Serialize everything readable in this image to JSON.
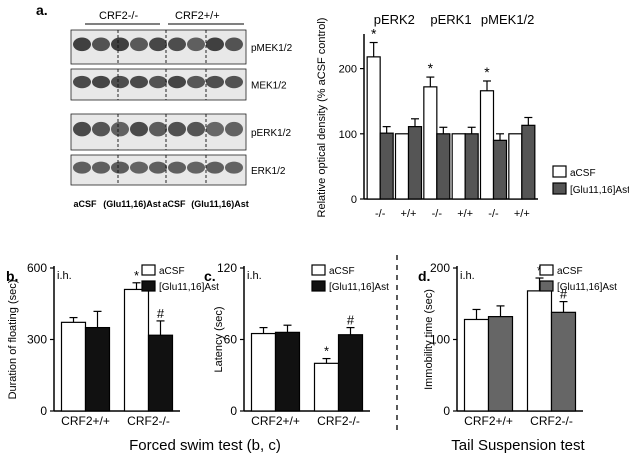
{
  "panel_labels": {
    "a": "a.",
    "b": "b.",
    "c": "c.",
    "d": "d."
  },
  "footers": {
    "swim": "Forced swim test (b, c)",
    "tail": "Tail Suspension test"
  },
  "western": {
    "group_left": "CRF2-/-",
    "group_right": "CRF2+/+",
    "blots": [
      "pMEK1/2",
      "MEK1/2",
      "pERK1/2",
      "ERK1/2"
    ],
    "lane_labels": [
      "aCSF",
      "(Glu11,16)Ast",
      "aCSF",
      "(Glu11,16)Ast"
    ]
  },
  "chart_data": [
    {
      "id": "a",
      "type": "bar",
      "title": "",
      "ylabel": "Relative optical density (% aCSF control)",
      "ylim": [
        0,
        250
      ],
      "yticks": [
        0,
        100,
        200
      ],
      "groups": [
        "pERK2",
        "pERK1",
        "pMEK1/2"
      ],
      "categories": [
        "-/-",
        "+/+",
        "-/-",
        "+/+",
        "-/-",
        "+/+"
      ],
      "series": [
        {
          "name": "aCSF",
          "color": "#ffffff",
          "values": [
            218,
            100,
            172,
            100,
            166,
            100
          ],
          "errors": [
            22,
            0,
            15,
            0,
            15,
            0
          ]
        },
        {
          "name": "[Glu11,16]Ast",
          "color": "#555555",
          "values": [
            101,
            111,
            100,
            100,
            90,
            113
          ],
          "errors": [
            10,
            12,
            10,
            10,
            10,
            12
          ]
        }
      ],
      "annotations": [
        "*",
        "*",
        "*"
      ],
      "legend": "bottom-right"
    },
    {
      "id": "b",
      "type": "bar",
      "ylabel": "Duration of floating (sec)",
      "ylim": [
        0,
        600
      ],
      "yticks": [
        0,
        300,
        600
      ],
      "categories": [
        "CRF2+/+",
        "CRF2-/-"
      ],
      "series": [
        {
          "name": "aCSF",
          "color": "#ffffff",
          "values": [
            372,
            510
          ],
          "errors": [
            20,
            28
          ]
        },
        {
          "name": "[Glu11,16]Ast",
          "color": "#111111",
          "values": [
            350,
            318
          ],
          "errors": [
            68,
            60
          ]
        }
      ],
      "annotations": [
        "*",
        "#"
      ],
      "note": "i.h.",
      "legend": "top-right"
    },
    {
      "id": "c",
      "type": "bar",
      "ylabel": "Latency (sec)",
      "ylim": [
        0,
        120
      ],
      "yticks": [
        0,
        60,
        120
      ],
      "categories": [
        "CRF2+/+",
        "CRF2-/-"
      ],
      "series": [
        {
          "name": "aCSF",
          "color": "#ffffff",
          "values": [
            65,
            40
          ],
          "errors": [
            5,
            4
          ]
        },
        {
          "name": "[Glu11,16]Ast",
          "color": "#111111",
          "values": [
            66,
            64
          ],
          "errors": [
            6,
            6
          ]
        }
      ],
      "annotations": [
        "*",
        "#"
      ],
      "note": "i.h.",
      "legend": "top-right"
    },
    {
      "id": "d",
      "type": "bar",
      "ylabel": "Immobility time (sec)",
      "ylim": [
        0,
        200
      ],
      "yticks": [
        0,
        100,
        200
      ],
      "categories": [
        "CRF2+/+",
        "CRF2-/-"
      ],
      "series": [
        {
          "name": "aCSF",
          "color": "#ffffff",
          "values": [
            128,
            168
          ],
          "errors": [
            14,
            18
          ]
        },
        {
          "name": "[Glu11,16]Ast",
          "color": "#666666",
          "values": [
            132,
            138
          ],
          "errors": [
            15,
            15
          ]
        }
      ],
      "annotations": [
        "*",
        "#"
      ],
      "note": "i.h.",
      "legend": "top-right"
    }
  ]
}
